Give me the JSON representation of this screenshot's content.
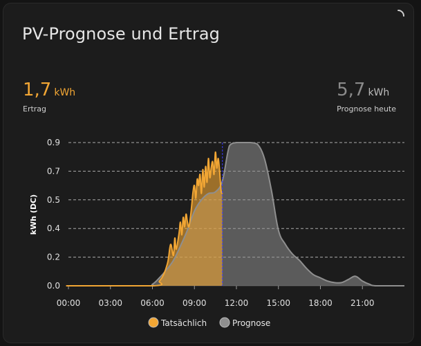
{
  "card": {
    "title": "PV-Prognose und Ertrag"
  },
  "stats": {
    "actual": {
      "value": "1,7",
      "unit": "kWh",
      "label": "Ertrag"
    },
    "forecast": {
      "value": "5,7",
      "unit": "kWh",
      "label": "Prognose heute"
    }
  },
  "colors": {
    "actual": "#f2a634",
    "forecast": "#8f8f8f",
    "now_line": "#3c3cff"
  },
  "chart_data": {
    "type": "area",
    "title": "",
    "ylabel": "kWh (DC)",
    "xlabel": "",
    "x_tick_labels": [
      "00:00",
      "03:00",
      "06:00",
      "09:00",
      "12:00",
      "15:00",
      "18:00",
      "21:00"
    ],
    "x_ticks_hours": [
      0,
      3,
      6,
      9,
      12,
      15,
      18,
      21
    ],
    "xlim_hours": [
      0,
      24
    ],
    "y_tick_labels": [
      "0.0",
      "0.2",
      "0.4",
      "0.5",
      "0.7",
      "0.9"
    ],
    "y_ticks": [
      0.0,
      0.18,
      0.36,
      0.54,
      0.72,
      0.9
    ],
    "ylim": [
      0,
      0.9
    ],
    "grid": true,
    "legend_position": "bottom",
    "now_hour": 11.0,
    "series": [
      {
        "name": "Tatsächlich",
        "x_hours": [
          0,
          0.5,
          6.1,
          6.5,
          6.8,
          7.1,
          7.3,
          7.5,
          7.6,
          7.7,
          7.9,
          8.0,
          8.1,
          8.2,
          8.3,
          8.4,
          8.5,
          8.6,
          8.7,
          8.8,
          8.9,
          9.0,
          9.1,
          9.2,
          9.3,
          9.4,
          9.5,
          9.6,
          9.7,
          9.8,
          9.9,
          10.0,
          10.1,
          10.2,
          10.3,
          10.4,
          10.5,
          10.6,
          10.7,
          10.8,
          10.9,
          11.0
        ],
        "values": [
          0.0,
          0.0,
          0.0,
          0.03,
          0.07,
          0.15,
          0.26,
          0.19,
          0.3,
          0.23,
          0.33,
          0.4,
          0.32,
          0.43,
          0.37,
          0.45,
          0.4,
          0.37,
          0.42,
          0.5,
          0.59,
          0.63,
          0.55,
          0.67,
          0.63,
          0.7,
          0.58,
          0.73,
          0.62,
          0.75,
          0.65,
          0.8,
          0.68,
          0.74,
          0.78,
          0.7,
          0.84,
          0.74,
          0.8,
          0.72,
          0.6,
          0.58
        ]
      },
      {
        "name": "Prognose",
        "x_hours": [
          0,
          5.5,
          6.0,
          6.5,
          7.0,
          7.5,
          8.0,
          8.5,
          9.0,
          9.5,
          10.0,
          10.5,
          11.0,
          11.5,
          12.0,
          12.5,
          13.0,
          13.5,
          14.0,
          14.5,
          15.0,
          15.5,
          16.0,
          16.5,
          17.0,
          17.5,
          18.0,
          18.5,
          19.0,
          19.5,
          20.0,
          20.5,
          21.0,
          21.5,
          22.0,
          24.0
        ],
        "values": [
          0.0,
          0.0,
          0.01,
          0.05,
          0.1,
          0.16,
          0.25,
          0.35,
          0.47,
          0.54,
          0.58,
          0.59,
          0.66,
          0.88,
          0.9,
          0.9,
          0.9,
          0.89,
          0.8,
          0.6,
          0.35,
          0.26,
          0.2,
          0.16,
          0.11,
          0.07,
          0.05,
          0.03,
          0.02,
          0.02,
          0.04,
          0.06,
          0.03,
          0.01,
          0.0,
          0.0
        ]
      }
    ]
  }
}
